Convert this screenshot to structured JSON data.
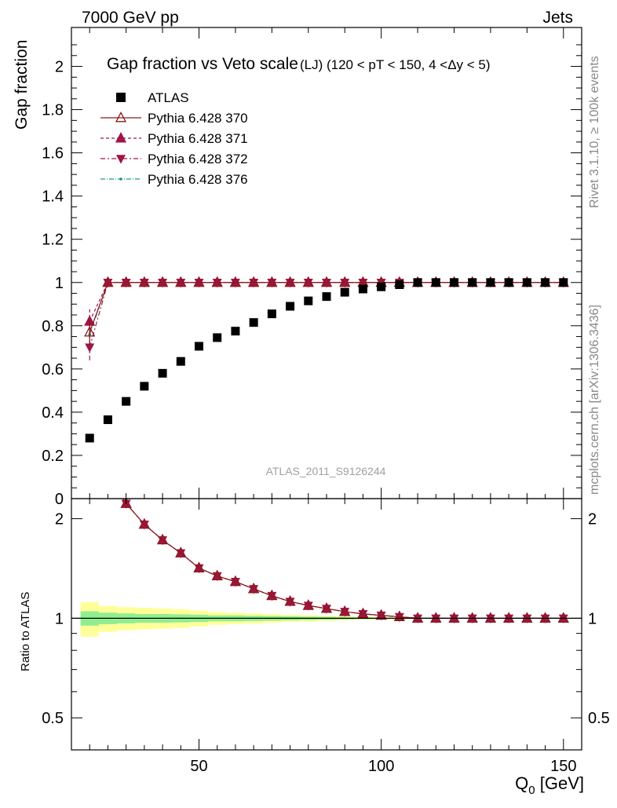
{
  "header": {
    "left_label": "7000 GeV pp",
    "right_label": "Jets"
  },
  "side_labels": {
    "rivet": "Rivet 3.1.10, ≥ 100k events",
    "mcplots": "mcplots.cern.ch [arXiv:1306.3436]"
  },
  "analysis_label": "ATLAS_2011_S9126244",
  "chart_data": {
    "type": "scatter",
    "title": "Gap fraction vs Veto scale",
    "title_suffix": "(LJ) (120 < pT < 150, 4 <Δy < 5)",
    "ylabel": "Gap fraction",
    "ratio_ylabel": "Ratio to ATLAS",
    "xlabel_main": "Q",
    "xlabel_sub": "0",
    "xlabel_unit": " [GeV]",
    "xlim": [
      15,
      155
    ],
    "ylim": [
      0,
      2.18
    ],
    "ratio_ylim": [
      0.4,
      2.3
    ],
    "ratio_log": true,
    "x_ticks": [
      "50",
      "100",
      "150"
    ],
    "y_ticks": [
      "0",
      "0.2",
      "0.4",
      "0.6",
      "0.8",
      "1",
      "1.2",
      "1.4",
      "1.6",
      "1.8",
      "2"
    ],
    "ratio_ticks": [
      "0.5",
      "1",
      "2"
    ],
    "x": [
      20,
      25,
      30,
      35,
      40,
      45,
      50,
      55,
      60,
      65,
      70,
      75,
      80,
      85,
      90,
      95,
      100,
      105,
      110,
      115,
      120,
      125,
      130,
      135,
      140,
      145,
      150
    ],
    "data": {
      "name": "ATLAS",
      "values": [
        0.28,
        0.365,
        0.45,
        0.52,
        0.58,
        0.635,
        0.705,
        0.745,
        0.775,
        0.815,
        0.855,
        0.89,
        0.915,
        0.935,
        0.955,
        0.97,
        0.98,
        0.99,
        1.0,
        1.0,
        1.0,
        1.0,
        1.0,
        1.0,
        1.0,
        1.0,
        1.0
      ],
      "band_inner": [
        0.05,
        0.04,
        0.035,
        0.03,
        0.03,
        0.028,
        0.025,
        0.02,
        0.02,
        0.018,
        0.016,
        0.014,
        0.012,
        0.01,
        0.008,
        0.006,
        0.005,
        0.003,
        0.002,
        0.002,
        0.002,
        0.002,
        0.002,
        0.002,
        0.002,
        0.002,
        0.002
      ],
      "band_outer": [
        0.12,
        0.09,
        0.08,
        0.075,
        0.07,
        0.065,
        0.055,
        0.045,
        0.04,
        0.035,
        0.03,
        0.025,
        0.022,
        0.018,
        0.014,
        0.01,
        0.008,
        0.006,
        0.004,
        0.004,
        0.004,
        0.004,
        0.004,
        0.004,
        0.004,
        0.004,
        0.004
      ]
    },
    "series": [
      {
        "name": "Pythia 6.428 370",
        "color": "#8b1a1a",
        "marker": "triangle-open",
        "dash": "",
        "values": [
          0.77,
          1,
          1,
          1,
          1,
          1,
          1,
          1,
          1,
          1,
          1,
          1,
          1,
          1,
          1,
          1,
          1,
          1,
          1,
          1,
          1,
          1,
          1,
          1,
          1,
          1,
          1
        ],
        "first_err": 0.06
      },
      {
        "name": "Pythia 6.428 371",
        "color": "#a01448",
        "marker": "triangle",
        "dash": "4,3",
        "values": [
          0.82,
          1,
          1,
          1,
          1,
          1,
          1,
          1,
          1,
          1,
          1,
          1,
          1,
          1,
          1,
          1,
          1,
          1,
          1,
          1,
          1,
          1,
          1,
          1,
          1,
          1,
          1
        ],
        "first_err": 0.06
      },
      {
        "name": "Pythia 6.428 372",
        "color": "#a01448",
        "marker": "triangle-down",
        "dash": "6,3,2,3",
        "values": [
          0.7,
          1,
          1,
          1,
          1,
          1,
          1,
          1,
          1,
          1,
          1,
          1,
          1,
          1,
          1,
          1,
          1,
          1,
          1,
          1,
          1,
          1,
          1,
          1,
          1,
          1,
          1
        ],
        "first_err": 0.06
      },
      {
        "name": "Pythia 6.428 376",
        "color": "#1a9a80",
        "marker": "dot",
        "dash": "6,2,1,2",
        "values": [
          0.76,
          1,
          1,
          1,
          1,
          1,
          1,
          1,
          1,
          1,
          1,
          1,
          1,
          1,
          1,
          1,
          1,
          1,
          1,
          1,
          1,
          1,
          1,
          1,
          1,
          1,
          1
        ],
        "first_err": 0.06
      }
    ],
    "legend_placement": "top-left",
    "colors": {
      "band_inner": "#90ee90",
      "band_outer": "#ffff99",
      "data": "#000000"
    }
  }
}
